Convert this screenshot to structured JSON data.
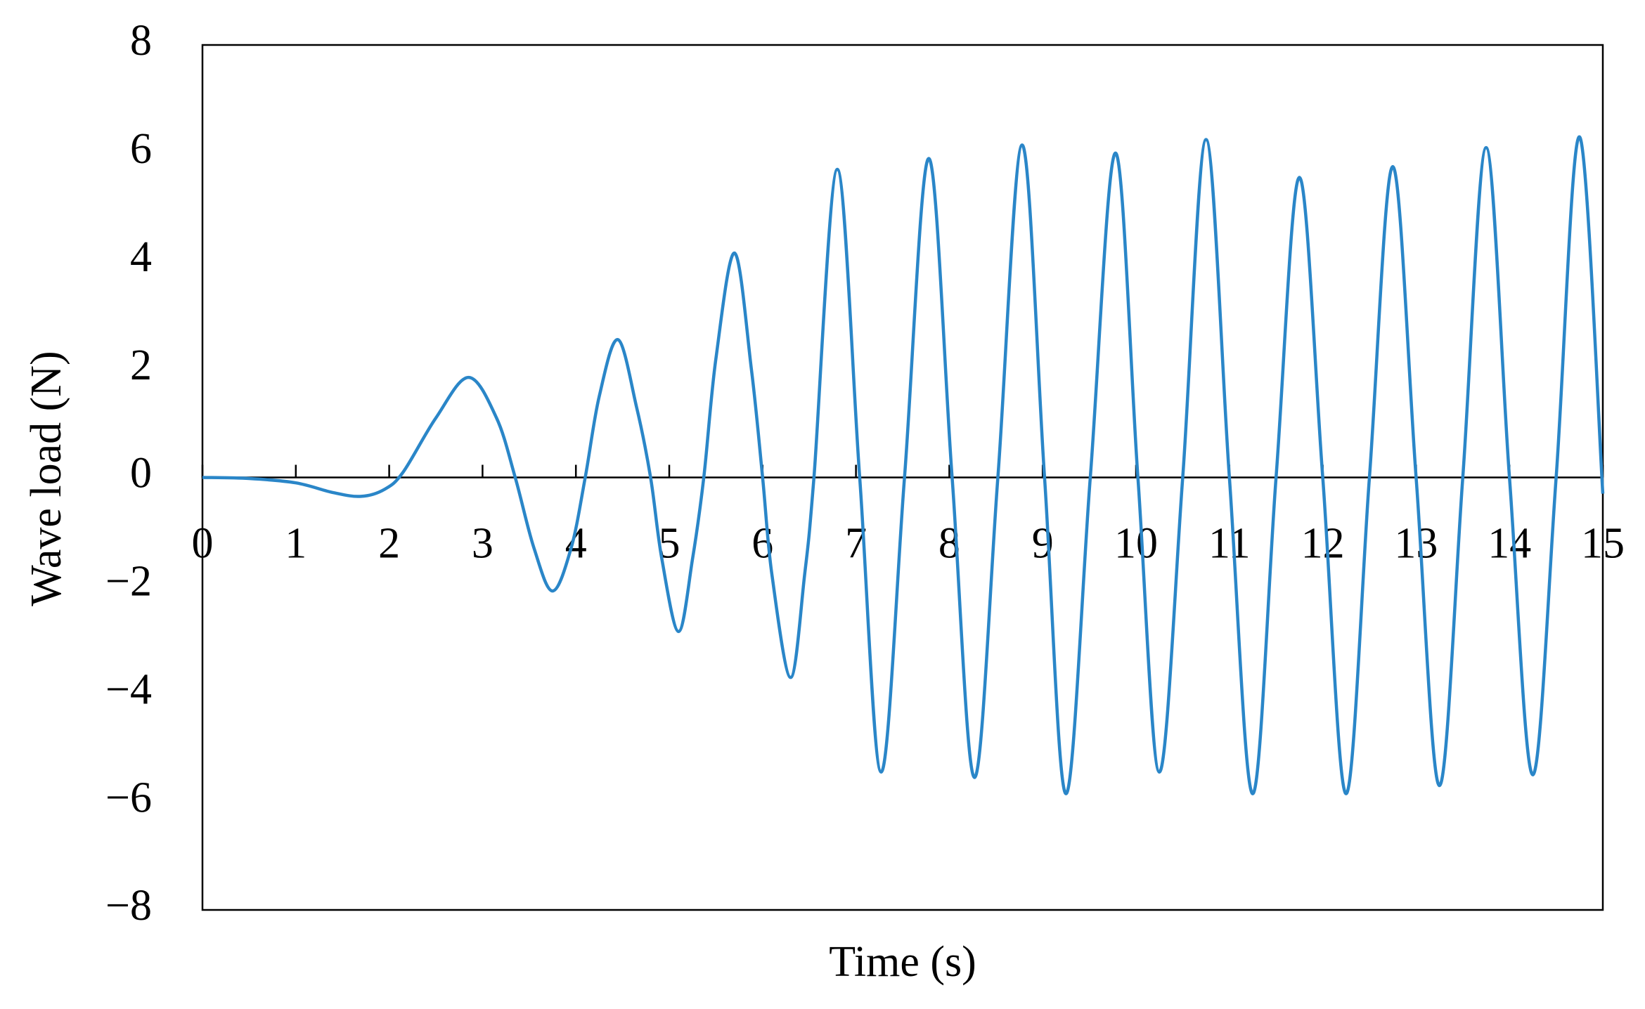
{
  "chart_data": {
    "type": "line",
    "x_label": "Time (s)",
    "y_label": "Wave load (N)",
    "xlim": [
      0,
      15
    ],
    "ylim": [
      -8,
      8
    ],
    "xticks": [
      0,
      1,
      2,
      3,
      4,
      5,
      6,
      7,
      8,
      9,
      10,
      11,
      12,
      13,
      14,
      15
    ],
    "yticks": [
      {
        "value": -8,
        "label": "−8"
      },
      {
        "value": -6,
        "label": "−6"
      },
      {
        "value": -4,
        "label": "−4"
      },
      {
        "value": -2,
        "label": "−2"
      },
      0,
      2,
      4,
      6,
      8
    ],
    "series": [
      {
        "color": "#2a86c8",
        "x": [
          0,
          0.5,
          1,
          1.4,
          1.7,
          1.95,
          2.15,
          2.5,
          2.85,
          3.15,
          3.35,
          3.55,
          3.75,
          3.95,
          4.1,
          4.25,
          4.45,
          4.65,
          4.8,
          4.92,
          5.1,
          5.25,
          5.37,
          5.5,
          5.7,
          5.88,
          6.0,
          6.1,
          6.3,
          6.45,
          6.55,
          6.8,
          7.04,
          7.27,
          7.52,
          7.78,
          8.03,
          8.27,
          8.52,
          8.78,
          9.02,
          9.25,
          9.51,
          9.78,
          10.02,
          10.25,
          10.5,
          10.75,
          11.0,
          11.25,
          11.5,
          11.75,
          12.0,
          12.25,
          12.5,
          12.75,
          13.0,
          13.25,
          13.5,
          13.75,
          14.0,
          14.25,
          14.5,
          14.75,
          15.0
        ],
        "values": [
          0,
          -0.02,
          -0.1,
          -0.28,
          -0.35,
          -0.22,
          0.1,
          1.1,
          1.85,
          1.1,
          0,
          -1.3,
          -2.1,
          -1.3,
          0,
          1.5,
          2.55,
          1.3,
          0,
          -1.5,
          -2.85,
          -1.5,
          0,
          2.2,
          4.15,
          2,
          0,
          -1.8,
          -3.7,
          -1.8,
          0,
          5.7,
          0,
          -5.45,
          0,
          5.9,
          0,
          -5.55,
          0,
          6.15,
          0,
          -5.85,
          0,
          6.0,
          0,
          -5.45,
          0,
          6.25,
          0,
          -5.85,
          0,
          5.55,
          0,
          -5.85,
          0,
          5.75,
          0,
          -5.7,
          0,
          6.1,
          0,
          -5.5,
          0,
          6.3,
          -0.3
        ]
      }
    ]
  }
}
